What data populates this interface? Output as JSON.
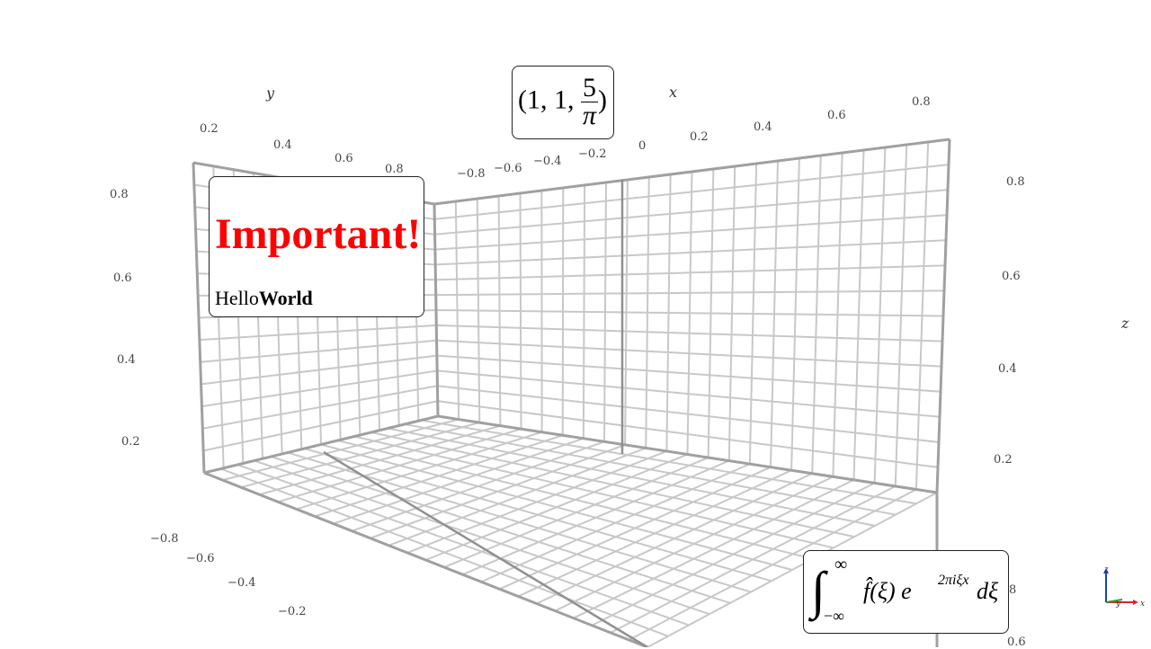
{
  "axes": {
    "x": {
      "title": "x",
      "ticks": [
        "−0.8",
        "−0.6",
        "−0.4",
        "−0.2",
        "0",
        "0.2",
        "0.4",
        "0.6",
        "0.8"
      ]
    },
    "y": {
      "title": "y",
      "top_ticks": [
        "0.2",
        "0.4",
        "0.6",
        "0.8"
      ],
      "bottom_ticks": [
        "−0.8",
        "−0.6",
        "−0.4",
        "−0.2"
      ]
    },
    "z": {
      "title": "z",
      "left_ticks": [
        "0.8",
        "0.6",
        "0.4",
        "0.2"
      ],
      "right_ticks": [
        "0.8",
        "0.6",
        "0.4",
        "0.2"
      ]
    },
    "corner_ticks": [
      "8",
      "0.6"
    ]
  },
  "annotations": {
    "important": {
      "headline": "Important!",
      "hello": "Hello",
      "world": "World"
    },
    "point": {
      "prefix": "(1, 1, ",
      "numerator": "5",
      "denominator": "π",
      "suffix": ")"
    },
    "integral": {
      "upper": "∞",
      "lower": "−∞",
      "body": "f̂(ξ) e",
      "exponent": "2πiξx",
      "differential": "dξ"
    }
  },
  "triad": {
    "labels": {
      "z": "z",
      "y": "y",
      "x": "x"
    },
    "colors": {
      "x": "#d62728",
      "y": "#2ca02c",
      "z": "#1f3fbf"
    }
  },
  "colors": {
    "grid": "#c8c8c8",
    "frame": "#a0a0a0",
    "highlight": "#ff0000"
  }
}
